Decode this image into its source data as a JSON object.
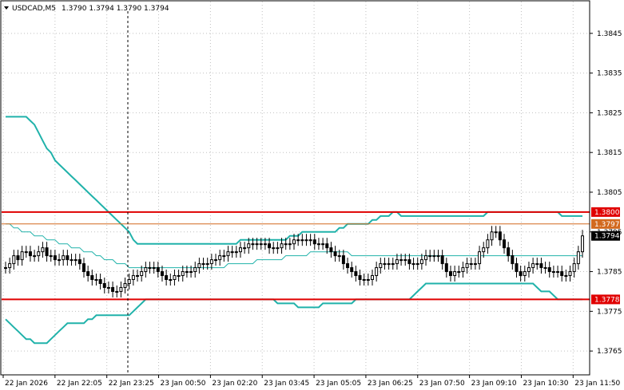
{
  "header": {
    "symbol_timeframe": "USDCAD,M5",
    "ohlc": "1.3790 1.3794 1.3790 1.3794"
  },
  "colors": {
    "background": "#ffffff",
    "candle": "#000000",
    "bands": "#20b2aa",
    "level_line": "#e00000",
    "ask_line": "#d2691e",
    "last_price_bg": "#000000",
    "grid": "#c0c0c0"
  },
  "chart_data": {
    "type": "candlestick",
    "symbol": "USDCAD",
    "timeframe": "M5",
    "ylim": [
      1.3759,
      1.3853
    ],
    "y_ticks": [
      1.3765,
      1.3775,
      1.3785,
      1.3795,
      1.3805,
      1.3815,
      1.3825,
      1.3835,
      1.3845
    ],
    "y_tick_labels": [
      "1.3765",
      "1.3775",
      "1.3785",
      "1.3795",
      "1.3805",
      "1.3815",
      "1.3825",
      "1.3835",
      "1.3845"
    ],
    "x_labels": [
      "22 Jan 2026",
      "22 Jan 22:05",
      "22 Jan 23:25",
      "23 Jan 00:50",
      "23 Jan 02:20",
      "23 Jan 03:45",
      "23 Jan 05:05",
      "23 Jan 06:25",
      "23 Jan 07:50",
      "23 Jan 09:10",
      "23 Jan 10:30",
      "23 Jan 11:50"
    ],
    "grid": true,
    "horizontal_levels": [
      {
        "label": "1.3800",
        "value": 1.38,
        "color": "#e00000"
      },
      {
        "label": "1.3778",
        "value": 1.3778,
        "color": "#e00000"
      }
    ],
    "ask_level": {
      "label": "1.3797",
      "value": 1.3797,
      "color": "#d2691e"
    },
    "last_price": {
      "label": "1.3794",
      "value": 1.3794
    },
    "close": [
      1.3786,
      1.3787,
      1.3789,
      1.3788,
      1.379,
      1.379,
      1.3789,
      1.3789,
      1.379,
      1.3791,
      1.3789,
      1.3789,
      1.3788,
      1.3788,
      1.3789,
      1.3788,
      1.3788,
      1.3788,
      1.3787,
      1.3785,
      1.3784,
      1.3783,
      1.3783,
      1.3782,
      1.3781,
      1.3781,
      1.378,
      1.378,
      1.3781,
      1.3782,
      1.3783,
      1.3784,
      1.3784,
      1.3785,
      1.3786,
      1.3786,
      1.3786,
      1.3785,
      1.3784,
      1.3783,
      1.3783,
      1.3784,
      1.3784,
      1.3785,
      1.3785,
      1.3785,
      1.3786,
      1.3787,
      1.3787,
      1.3787,
      1.3788,
      1.3788,
      1.3789,
      1.3789,
      1.379,
      1.379,
      1.379,
      1.3791,
      1.3791,
      1.3792,
      1.3792,
      1.3792,
      1.3792,
      1.3792,
      1.3791,
      1.3791,
      1.3791,
      1.3792,
      1.3792,
      1.3792,
      1.3793,
      1.3793,
      1.3793,
      1.3793,
      1.3793,
      1.3792,
      1.3792,
      1.3792,
      1.3791,
      1.379,
      1.3789,
      1.3789,
      1.3787,
      1.3786,
      1.3785,
      1.3784,
      1.3783,
      1.3783,
      1.3783,
      1.3784,
      1.3786,
      1.3787,
      1.3787,
      1.3787,
      1.3787,
      1.3788,
      1.3788,
      1.3788,
      1.3787,
      1.3787,
      1.3787,
      1.3788,
      1.3789,
      1.3789,
      1.3789,
      1.3789,
      1.3787,
      1.3785,
      1.3784,
      1.3785,
      1.3785,
      1.3786,
      1.3787,
      1.3787,
      1.3787,
      1.379,
      1.3791,
      1.3793,
      1.3795,
      1.3795,
      1.3793,
      1.3791,
      1.3789,
      1.3787,
      1.3785,
      1.3784,
      1.3785,
      1.3786,
      1.3787,
      1.3787,
      1.3786,
      1.3786,
      1.3785,
      1.3785,
      1.3785,
      1.3784,
      1.3784,
      1.3785,
      1.3787,
      1.379,
      1.3794
    ],
    "band_upper": [
      1.3824,
      1.3824,
      1.3824,
      1.3824,
      1.3824,
      1.3824,
      1.3823,
      1.3822,
      1.382,
      1.3818,
      1.3816,
      1.3815,
      1.3813,
      1.3812,
      1.3811,
      1.381,
      1.3809,
      1.3808,
      1.3807,
      1.3806,
      1.3805,
      1.3804,
      1.3803,
      1.3802,
      1.3801,
      1.38,
      1.3799,
      1.3798,
      1.3797,
      1.3796,
      1.3795,
      1.3793,
      1.3792,
      1.3792,
      1.3792,
      1.3792,
      1.3792,
      1.3792,
      1.3792,
      1.3792,
      1.3792,
      1.3792,
      1.3792,
      1.3792,
      1.3792,
      1.3792,
      1.3792,
      1.3792,
      1.3792,
      1.3792,
      1.3792,
      1.3792,
      1.3792,
      1.3792,
      1.3792,
      1.3792,
      1.3792,
      1.3793,
      1.3793,
      1.3793,
      1.3793,
      1.3793,
      1.3793,
      1.3793,
      1.3793,
      1.3793,
      1.3793,
      1.3793,
      1.3793,
      1.3794,
      1.3794,
      1.3794,
      1.3795,
      1.3795,
      1.3795,
      1.3795,
      1.3795,
      1.3795,
      1.3795,
      1.3795,
      1.3795,
      1.3796,
      1.3796,
      1.3797,
      1.3797,
      1.3797,
      1.3797,
      1.3797,
      1.3797,
      1.3798,
      1.3798,
      1.3799,
      1.3799,
      1.3799,
      1.38,
      1.38,
      1.3799,
      1.3799,
      1.3799,
      1.3799,
      1.3799,
      1.3799,
      1.3799,
      1.3799,
      1.3799,
      1.3799,
      1.3799,
      1.3799,
      1.3799,
      1.3799,
      1.3799,
      1.3799,
      1.3799,
      1.3799,
      1.3799,
      1.3799,
      1.3799,
      1.38,
      1.38,
      1.38,
      1.38,
      1.38,
      1.38,
      1.38,
      1.38,
      1.38,
      1.38,
      1.38,
      1.38,
      1.38,
      1.38,
      1.38,
      1.38,
      1.38,
      1.38,
      1.3799,
      1.3799,
      1.3799,
      1.3799,
      1.3799,
      1.3799
    ],
    "band_middle": [
      1.3797,
      1.3797,
      1.3796,
      1.3796,
      1.3795,
      1.3795,
      1.3795,
      1.3794,
      1.3794,
      1.3794,
      1.3793,
      1.3793,
      1.3793,
      1.3792,
      1.3792,
      1.3792,
      1.3791,
      1.3791,
      1.3791,
      1.379,
      1.379,
      1.379,
      1.3789,
      1.3789,
      1.3788,
      1.3788,
      1.3788,
      1.3787,
      1.3787,
      1.3787,
      1.3786,
      1.3786,
      1.3786,
      1.3786,
      1.3786,
      1.3786,
      1.3786,
      1.3786,
      1.3786,
      1.3786,
      1.3786,
      1.3786,
      1.3786,
      1.3786,
      1.3786,
      1.3786,
      1.3786,
      1.3786,
      1.3786,
      1.3786,
      1.3786,
      1.3786,
      1.3786,
      1.3786,
      1.3787,
      1.3787,
      1.3787,
      1.3787,
      1.3787,
      1.3787,
      1.3787,
      1.3788,
      1.3788,
      1.3788,
      1.3788,
      1.3788,
      1.3788,
      1.3788,
      1.3789,
      1.3789,
      1.3789,
      1.3789,
      1.3789,
      1.3789,
      1.379,
      1.379,
      1.379,
      1.379,
      1.379,
      1.379,
      1.379,
      1.379,
      1.379,
      1.379,
      1.3789,
      1.3789,
      1.3789,
      1.3789,
      1.3789,
      1.3789,
      1.3789,
      1.3789,
      1.3789,
      1.3789,
      1.3789,
      1.3789,
      1.3789,
      1.3789,
      1.3789,
      1.3789,
      1.3789,
      1.3789,
      1.3789,
      1.3789,
      1.3789,
      1.3789,
      1.3789,
      1.3789,
      1.3789,
      1.3789,
      1.3789,
      1.3789,
      1.3789,
      1.3789,
      1.3789,
      1.3789,
      1.3789,
      1.3789,
      1.3789,
      1.3789,
      1.3789,
      1.3789,
      1.3789,
      1.3789,
      1.3789,
      1.3789,
      1.3789,
      1.3789,
      1.3789,
      1.3789,
      1.3789,
      1.3789,
      1.3789,
      1.3789,
      1.3789,
      1.3789,
      1.3789,
      1.3789,
      1.3789,
      1.3789,
      1.3789
    ],
    "band_lower": [
      1.3773,
      1.3772,
      1.3771,
      1.377,
      1.3769,
      1.3768,
      1.3768,
      1.3767,
      1.3767,
      1.3767,
      1.3767,
      1.3768,
      1.3769,
      1.377,
      1.3771,
      1.3772,
      1.3772,
      1.3772,
      1.3772,
      1.3772,
      1.3773,
      1.3773,
      1.3774,
      1.3774,
      1.3774,
      1.3774,
      1.3774,
      1.3774,
      1.3774,
      1.3774,
      1.3774,
      1.3775,
      1.3776,
      1.3777,
      1.3778,
      1.3778,
      1.3778,
      1.3778,
      1.3778,
      1.3778,
      1.3778,
      1.3778,
      1.3778,
      1.3778,
      1.3778,
      1.3778,
      1.3778,
      1.3778,
      1.3778,
      1.3778,
      1.3778,
      1.3778,
      1.3778,
      1.3778,
      1.3778,
      1.3778,
      1.3778,
      1.3778,
      1.3778,
      1.3778,
      1.3778,
      1.3778,
      1.3778,
      1.3778,
      1.3778,
      1.3778,
      1.3777,
      1.3777,
      1.3777,
      1.3777,
      1.3777,
      1.3776,
      1.3776,
      1.3776,
      1.3776,
      1.3776,
      1.3776,
      1.3777,
      1.3777,
      1.3777,
      1.3777,
      1.3777,
      1.3777,
      1.3777,
      1.3777,
      1.3778,
      1.3778,
      1.3778,
      1.3778,
      1.3778,
      1.3778,
      1.3778,
      1.3778,
      1.3778,
      1.3778,
      1.3778,
      1.3778,
      1.3778,
      1.3778,
      1.3779,
      1.378,
      1.3781,
      1.3782,
      1.3782,
      1.3782,
      1.3782,
      1.3782,
      1.3782,
      1.3782,
      1.3782,
      1.3782,
      1.3782,
      1.3782,
      1.3782,
      1.3782,
      1.3782,
      1.3782,
      1.3782,
      1.3782,
      1.3782,
      1.3782,
      1.3782,
      1.3782,
      1.3782,
      1.3782,
      1.3782,
      1.3782,
      1.3782,
      1.3782,
      1.3781,
      1.378,
      1.378,
      1.378,
      1.3779,
      1.3778,
      1.3778,
      1.3778,
      1.3778,
      1.3778,
      1.3778,
      1.3778
    ]
  }
}
